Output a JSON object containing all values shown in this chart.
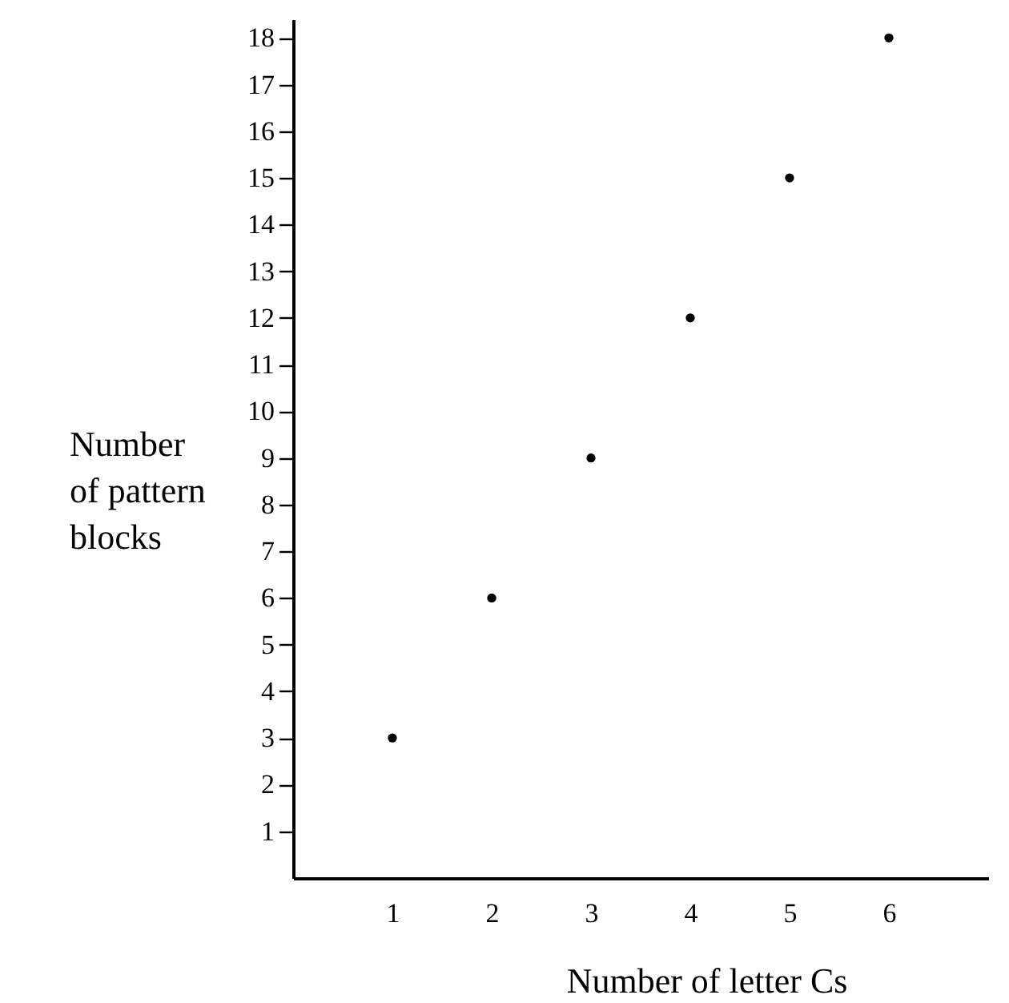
{
  "chart_data": {
    "type": "scatter",
    "xlabel": "Number of letter Cs",
    "ylabel": "Number of pattern blocks",
    "x": [
      1,
      2,
      3,
      4,
      5,
      6
    ],
    "series": [
      {
        "color": "#000000",
        "values": [
          3,
          6,
          9,
          12,
          15,
          18
        ]
      }
    ],
    "xlim": [
      0,
      7
    ],
    "xticks": [
      1,
      2,
      3,
      4,
      5,
      6
    ],
    "ylim": [
      0,
      18.4
    ],
    "yticks": [
      1,
      2,
      3,
      4,
      5,
      6,
      7,
      8,
      9,
      10,
      11,
      12,
      13,
      14,
      15,
      16,
      17,
      18
    ],
    "grid": false,
    "marker": "circle"
  }
}
